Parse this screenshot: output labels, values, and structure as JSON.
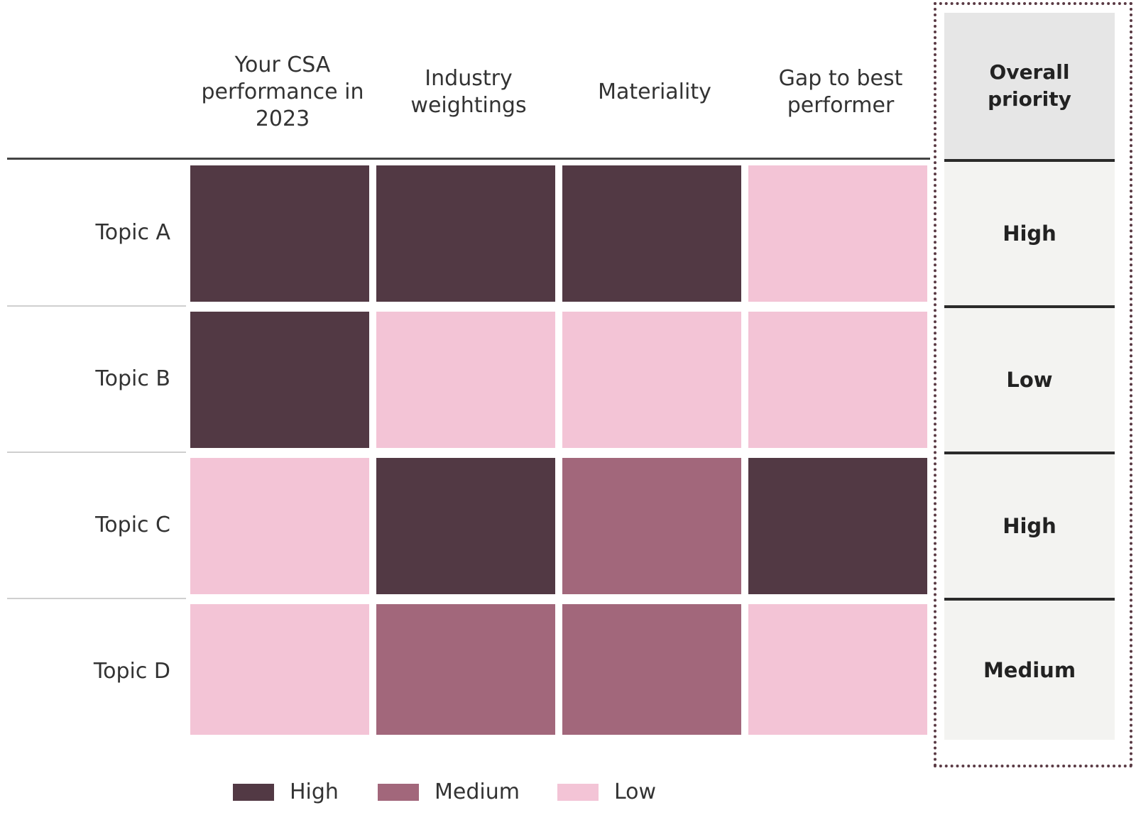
{
  "chart_data": {
    "type": "heatmap",
    "columns": [
      "Your CSA performance in 2023",
      "Industry weightings",
      "Materiality",
      "Gap to best performer"
    ],
    "rows": [
      "Topic A",
      "Topic B",
      "Topic C",
      "Topic D"
    ],
    "values": [
      [
        "High",
        "High",
        "High",
        "Low"
      ],
      [
        "High",
        "Low",
        "Low",
        "Low"
      ],
      [
        "Low",
        "High",
        "Medium",
        "High"
      ],
      [
        "Low",
        "Medium",
        "Medium",
        "Low"
      ]
    ],
    "overall_header": "Overall priority",
    "overall_priority": [
      "High",
      "Low",
      "High",
      "Medium"
    ],
    "legend": [
      {
        "label": "High",
        "color": "#523944"
      },
      {
        "label": "Medium",
        "color": "#a2677b"
      },
      {
        "label": "Low",
        "color": "#f3c4d6"
      }
    ]
  }
}
